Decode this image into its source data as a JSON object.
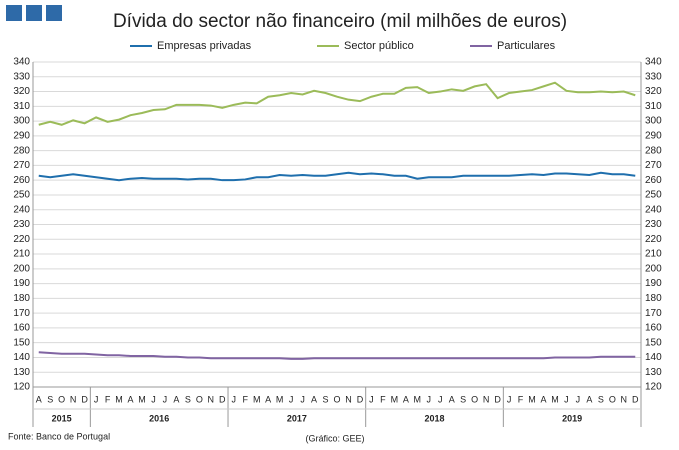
{
  "chart_data": {
    "type": "line",
    "title": "Dívida do sector não financeiro (mil milhões de euros)",
    "source": "Fonte: Banco de Portugal",
    "credit": "(Gráfico: GEE)",
    "categories": [
      "A",
      "S",
      "O",
      "N",
      "D",
      "J",
      "F",
      "M",
      "A",
      "M",
      "J",
      "J",
      "A",
      "S",
      "O",
      "N",
      "D",
      "J",
      "F",
      "M",
      "A",
      "M",
      "J",
      "J",
      "A",
      "S",
      "O",
      "N",
      "D",
      "J",
      "F",
      "M",
      "A",
      "M",
      "J",
      "J",
      "A",
      "S",
      "O",
      "N",
      "D",
      "J",
      "F",
      "M",
      "A",
      "M",
      "J",
      "J",
      "A",
      "S",
      "O",
      "N",
      "D"
    ],
    "years": [
      "2015",
      "2016",
      "2017",
      "2018",
      "2019"
    ],
    "series": [
      {
        "name": "Empresas privadas",
        "color": "#1f6fad",
        "values": [
          263,
          262,
          263,
          264,
          263,
          262,
          261,
          260,
          261,
          261.5,
          261,
          261,
          261,
          260.5,
          261,
          261,
          260,
          260,
          260.5,
          262,
          262,
          263.5,
          263,
          263.5,
          263,
          263,
          264,
          265,
          264,
          264.5,
          264,
          263,
          263,
          261,
          262,
          262,
          262,
          263,
          263,
          263,
          263,
          263,
          263.5,
          264,
          263.5,
          264.5,
          264.5,
          264,
          263.5,
          265,
          264,
          264,
          263
        ]
      },
      {
        "name": "Sector público",
        "color": "#9bbb59",
        "values": [
          297.5,
          299.5,
          297.5,
          300.5,
          298.5,
          302.5,
          299.5,
          301,
          304,
          305.5,
          307.5,
          308,
          311,
          311,
          311,
          310.5,
          309,
          311,
          312.5,
          312,
          316.5,
          317.5,
          319,
          318,
          320.5,
          319,
          316.5,
          314.5,
          313.5,
          316.5,
          318.5,
          318.5,
          322.5,
          323,
          319,
          320,
          321.5,
          320.5,
          323.5,
          325,
          315.5,
          319,
          320,
          321,
          323.5,
          326,
          320.5,
          319.5,
          319.5,
          320,
          319.5,
          320,
          317.5
        ]
      },
      {
        "name": "Particulares",
        "color": "#8064a2",
        "values": [
          143.5,
          143,
          142.5,
          142.5,
          142.5,
          142,
          141.5,
          141.5,
          141,
          141,
          141,
          140.5,
          140.5,
          140,
          140,
          139.5,
          139.5,
          139.5,
          139.5,
          139.5,
          139.5,
          139.5,
          139,
          139,
          139.5,
          139.5,
          139.5,
          139.5,
          139.5,
          139.5,
          139.5,
          139.5,
          139.5,
          139.5,
          139.5,
          139.5,
          139.5,
          139.5,
          139.5,
          139.5,
          139.5,
          139.5,
          139.5,
          139.5,
          139.5,
          140,
          140,
          140,
          140,
          140.5,
          140.5,
          140.5,
          140.5
        ]
      }
    ],
    "ylim": [
      120,
      340
    ],
    "yticks": [
      120,
      130,
      140,
      150,
      160,
      170,
      180,
      190,
      200,
      210,
      220,
      230,
      240,
      250,
      260,
      270,
      280,
      290,
      300,
      310,
      320,
      330,
      340
    ],
    "y2lim": [
      120,
      340
    ],
    "y2ticks": [
      120,
      130,
      140,
      150,
      160,
      170,
      180,
      190,
      200,
      210,
      220,
      230,
      240,
      250,
      260,
      270,
      280,
      290,
      300,
      310,
      320,
      330,
      340
    ],
    "grid": true,
    "legend": "top"
  }
}
